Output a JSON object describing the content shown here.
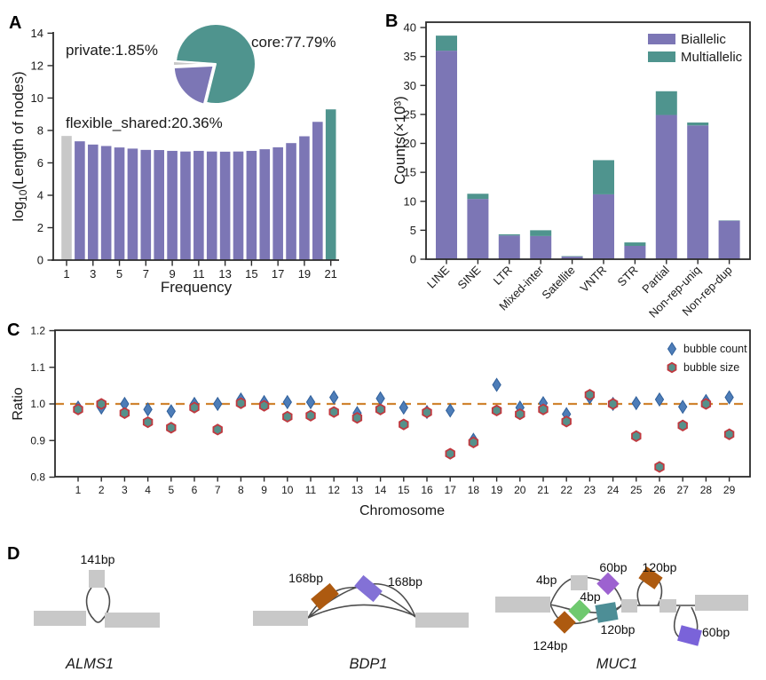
{
  "figure": {
    "panel_labels": {
      "A": "A",
      "B": "B",
      "C": "C",
      "D": "D"
    }
  },
  "panelA": {
    "ylabel_parts": {
      "prefix": "log",
      "sub": "10",
      "suffix": "(Length of nodes)"
    }
  },
  "colors": {
    "purple": "#7c76b5",
    "teal": "#4f948e",
    "gray": "#c8c8c8",
    "diamond_blue": "#4d7db8",
    "diamond_edge": "#31609b",
    "hex_fill": "#55918b",
    "hex_edge": "#c0393f",
    "refline_orange": "#d08430"
  },
  "chart_data": [
    {
      "panel": "A",
      "type": "bar",
      "title": "",
      "xlabel": "Frequency",
      "ylabel": "log10(Length of nodes)",
      "ylim": [
        0,
        14
      ],
      "yticks": [
        0,
        2,
        4,
        6,
        8,
        10,
        12,
        14
      ],
      "xticks": [
        1,
        3,
        5,
        7,
        9,
        11,
        13,
        15,
        17,
        19,
        21
      ],
      "x": [
        1,
        2,
        3,
        4,
        5,
        6,
        7,
        8,
        9,
        10,
        11,
        12,
        13,
        14,
        15,
        16,
        17,
        18,
        19,
        20,
        21
      ],
      "values": [
        7.66,
        7.33,
        7.13,
        7.04,
        6.95,
        6.88,
        6.8,
        6.79,
        6.74,
        6.7,
        6.74,
        6.7,
        6.69,
        6.7,
        6.74,
        6.84,
        6.96,
        7.22,
        7.64,
        8.53,
        9.3
      ],
      "bar_colors_rule": {
        "first": "#c8c8c8",
        "default": "#7c76b5",
        "last": "#4f948e"
      },
      "inset_pie": {
        "labels": [
          "core",
          "private",
          "flexible_shared"
        ],
        "values": [
          77.79,
          1.85,
          20.36
        ],
        "colors": [
          "#4f948e",
          "#c8c8c8",
          "#7c76b5"
        ],
        "annotations": [
          "core:77.79%",
          "private:1.85%",
          "flexible_shared:20.36%"
        ],
        "start_angle_deg": 256
      }
    },
    {
      "panel": "B",
      "type": "bar",
      "stacked": true,
      "categories": [
        "LINE",
        "SINE",
        "LTR",
        "Mixed-inter",
        "Satellite",
        "VNTR",
        "STR",
        "Partial",
        "Non-rep-uniq",
        "Non-rep-dup"
      ],
      "series": [
        {
          "name": "Biallelic",
          "color": "#7c76b5",
          "values": [
            36.0,
            10.4,
            4.1,
            4.0,
            0.45,
            11.2,
            2.3,
            24.9,
            23.1,
            6.65
          ]
        },
        {
          "name": "Multiallelic",
          "color": "#4f948e",
          "values": [
            2.6,
            0.9,
            0.2,
            1.0,
            0.08,
            5.9,
            0.6,
            4.1,
            0.5,
            0.05
          ]
        }
      ],
      "ylabel": "Counts(×10³)",
      "ylim": [
        0,
        40
      ],
      "yticks": [
        0,
        5,
        10,
        15,
        20,
        25,
        30,
        35,
        40
      ],
      "legend_position": "top-right"
    },
    {
      "panel": "C",
      "type": "scatter",
      "xlabel": "Chromosome",
      "ylabel": "Ratio",
      "ylim": [
        0.8,
        1.2
      ],
      "yticks": [
        "0.8",
        "0.9",
        "1.0",
        "1.1",
        "1.2"
      ],
      "x": [
        1,
        2,
        3,
        4,
        5,
        6,
        7,
        8,
        9,
        10,
        11,
        12,
        13,
        14,
        15,
        16,
        17,
        18,
        19,
        20,
        21,
        22,
        23,
        24,
        25,
        26,
        27,
        28,
        29
      ],
      "refline": 1.0,
      "refline_color": "#d08430",
      "series": [
        {
          "name": "bubble count",
          "marker": "diamond",
          "fill": "#4d7db8",
          "edge": "#31609b",
          "values": [
            0.99,
            0.99,
            1.0,
            0.985,
            0.98,
            1.0,
            1.0,
            1.012,
            1.005,
            1.005,
            1.005,
            1.018,
            0.975,
            1.015,
            0.99,
            0.978,
            0.982,
            0.902,
            1.052,
            0.99,
            1.002,
            0.972,
            1.018,
            1.0,
            1.002,
            1.012,
            0.992,
            1.008,
            1.018
          ]
        },
        {
          "name": "bubble size",
          "marker": "hexagon",
          "fill": "#55918b",
          "edge": "#c0393f",
          "values": [
            0.985,
            1.0,
            0.975,
            0.95,
            0.935,
            0.99,
            0.93,
            1.002,
            0.995,
            0.965,
            0.968,
            0.978,
            0.962,
            0.985,
            0.944,
            0.977,
            0.864,
            0.895,
            0.982,
            0.972,
            0.985,
            0.952,
            1.025,
            1.0,
            0.912,
            0.828,
            0.941,
            1.0,
            0.917
          ]
        }
      ],
      "legend_position": "top-right"
    },
    {
      "panel": "D",
      "type": "diagram",
      "genes": [
        {
          "name": "ALMS1",
          "variants": [
            "141bp"
          ]
        },
        {
          "name": "BDP1",
          "variants": [
            "168bp",
            "168bp"
          ]
        },
        {
          "name": "MUC1",
          "variants": [
            "4bp",
            "60bp",
            "120bp",
            "4bp",
            "120bp",
            "124bp",
            "60bp"
          ]
        }
      ]
    }
  ]
}
